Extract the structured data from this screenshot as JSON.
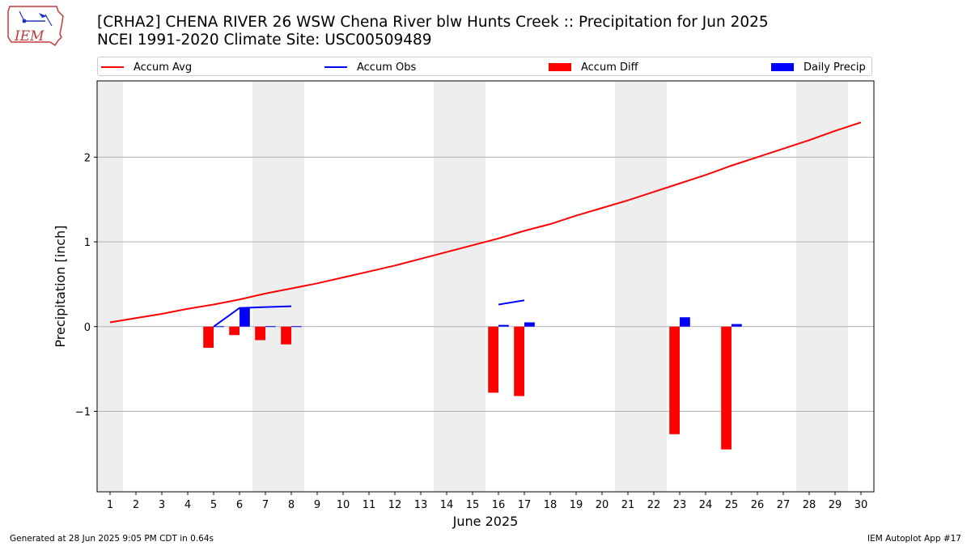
{
  "logo": {
    "text": "IEM",
    "icon": "iem-iowa-logo"
  },
  "title_line1": "[CRHA2] CHENA RIVER 26 WSW Chena River blw Hunts Creek :: Precipitation for Jun 2025",
  "title_line2": "NCEI 1991-2020 Climate Site: USC00509489",
  "legend": [
    {
      "label": "Accum Avg",
      "kind": "line",
      "color": "#ff0000"
    },
    {
      "label": "Accum Obs",
      "kind": "line",
      "color": "#0000ff"
    },
    {
      "label": "Accum Diff",
      "kind": "bar",
      "color": "#ff0000"
    },
    {
      "label": "Daily Precip",
      "kind": "bar",
      "color": "#0000ff"
    }
  ],
  "footer_left": "Generated at 28 Jun 2025 9:05 PM CDT in 0.64s",
  "footer_right": "IEM Autoplot App #17",
  "chart_data": {
    "type": "bar",
    "xlabel": "June 2025",
    "ylabel": "Precipitation [inch]",
    "xlim": [
      0.5,
      30.5
    ],
    "ylim": [
      -1.95,
      2.9
    ],
    "x_ticks": [
      1,
      2,
      3,
      4,
      5,
      6,
      7,
      8,
      9,
      10,
      11,
      12,
      13,
      14,
      15,
      16,
      17,
      18,
      19,
      20,
      21,
      22,
      23,
      24,
      25,
      26,
      27,
      28,
      29,
      30
    ],
    "y_ticks": [
      -1,
      0,
      1,
      2
    ],
    "y_tick_labels": [
      "−1",
      "0",
      "1",
      "2"
    ],
    "grid": "y",
    "weekend_shading": [
      [
        0.5,
        1.5
      ],
      [
        6.5,
        8.5
      ],
      [
        13.5,
        15.5
      ],
      [
        20.5,
        22.5
      ],
      [
        27.5,
        29.5
      ]
    ],
    "accum_avg": {
      "name": "Accum Avg",
      "color": "#ff0000",
      "x": [
        1,
        2,
        3,
        4,
        5,
        6,
        7,
        8,
        9,
        10,
        11,
        12,
        13,
        14,
        15,
        16,
        17,
        18,
        19,
        20,
        21,
        22,
        23,
        24,
        25,
        26,
        27,
        28,
        29,
        30
      ],
      "y": [
        0.05,
        0.1,
        0.15,
        0.21,
        0.26,
        0.32,
        0.39,
        0.45,
        0.51,
        0.58,
        0.65,
        0.72,
        0.8,
        0.88,
        0.96,
        1.04,
        1.13,
        1.21,
        1.31,
        1.4,
        1.49,
        1.59,
        1.69,
        1.79,
        1.9,
        2.0,
        2.1,
        2.2,
        2.31,
        2.41
      ]
    },
    "accum_obs": {
      "name": "Accum Obs",
      "color": "#0000ff",
      "segments": [
        {
          "x": [
            5,
            6,
            7,
            8
          ],
          "y": [
            0.0,
            0.22,
            0.23,
            0.24
          ]
        },
        {
          "x": [
            16,
            17
          ],
          "y": [
            0.26,
            0.31
          ]
        }
      ]
    },
    "accum_diff": {
      "name": "Accum Diff",
      "color": "#ff0000",
      "x": [
        5,
        6,
        7,
        8,
        16,
        17,
        23,
        25
      ],
      "values": [
        -0.25,
        -0.1,
        -0.16,
        -0.21,
        -0.78,
        -0.82,
        -1.27,
        -1.45
      ]
    },
    "daily_precip": {
      "name": "Daily Precip",
      "color": "#0000ff",
      "x": [
        5,
        6,
        7,
        8,
        16,
        17,
        23,
        25
      ],
      "values": [
        0.005,
        0.22,
        0.005,
        0.005,
        0.02,
        0.05,
        0.11,
        0.03
      ]
    }
  }
}
